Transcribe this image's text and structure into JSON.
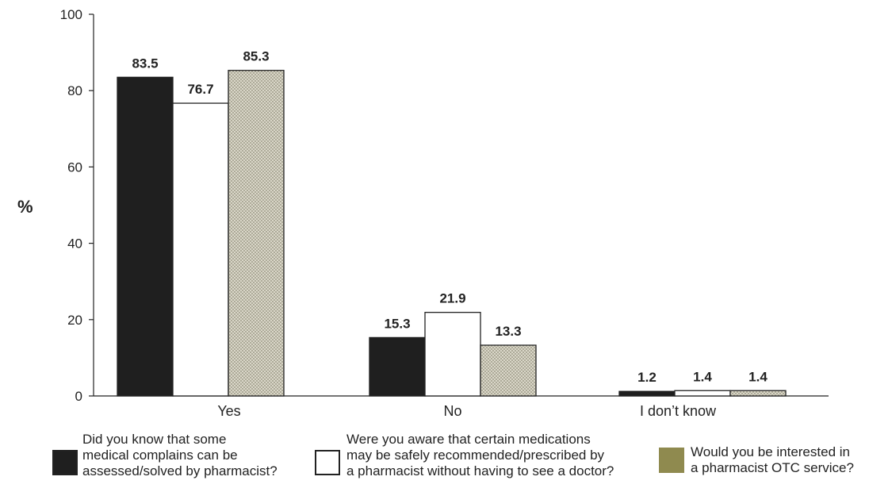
{
  "chart_data": {
    "type": "bar",
    "title": "",
    "xlabel": "",
    "ylabel": "%",
    "ylim": [
      0,
      100
    ],
    "yticks": [
      0,
      20,
      40,
      60,
      80,
      100
    ],
    "grid": false,
    "legend_position": "bottom",
    "categories": [
      "Yes",
      "No",
      "I don’t know"
    ],
    "series": [
      {
        "name": "Did you know that some\nmedical complains can be\nassessed/solved by  pharmacist?",
        "values": [
          83.5,
          15.3,
          1.2
        ],
        "labels": [
          "83.5",
          "15.3",
          "1.2"
        ],
        "fill": "#1f1f1f",
        "pattern": "solid"
      },
      {
        "name": "Were you aware that certain medications\nmay be safely recommended/prescribed by\na pharmacist without having to see a doctor?",
        "values": [
          76.7,
          21.9,
          1.4
        ],
        "labels": [
          "76.7",
          "21.9",
          "1.4"
        ],
        "fill": "#ffffff",
        "pattern": "solid"
      },
      {
        "name": "Would you be interested in\na pharmacist OTC service?",
        "values": [
          85.3,
          13.3,
          1.4
        ],
        "labels": [
          "85.3",
          "13.3",
          "1.4"
        ],
        "fill": "#d6d3c4",
        "legend_fill": "#8f8a4f",
        "pattern": "crosshatch"
      }
    ]
  }
}
